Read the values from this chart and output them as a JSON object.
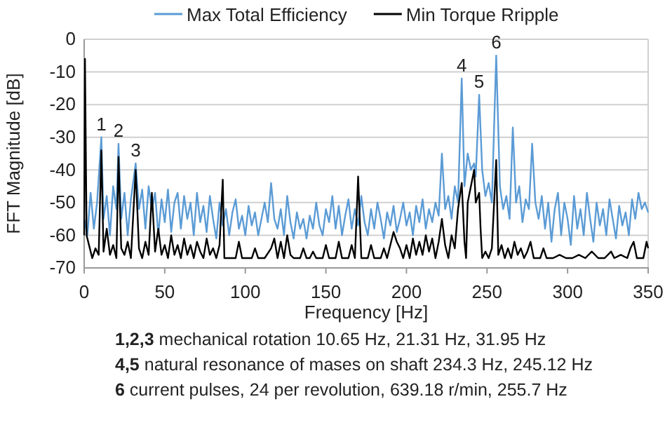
{
  "chart_data": {
    "type": "line",
    "xlabel": "Frequency [Hz]",
    "ylabel": "FFT Magnitude [dB]",
    "xlim": [
      0,
      350
    ],
    "xticks": [
      0,
      50,
      100,
      150,
      200,
      250,
      300,
      350
    ],
    "ylim": [
      -70,
      0
    ],
    "yticks": [
      -70,
      -60,
      -50,
      -40,
      -30,
      -20,
      -10,
      0
    ],
    "grid": "y",
    "legend": "top",
    "annotations": [
      {
        "text": "1",
        "x": 10.65,
        "y": -30
      },
      {
        "text": "2",
        "x": 21.31,
        "y": -32
      },
      {
        "text": "3",
        "x": 31.95,
        "y": -38
      },
      {
        "text": "4",
        "x": 234.3,
        "y": -12
      },
      {
        "text": "5",
        "x": 245.12,
        "y": -17
      },
      {
        "text": "6",
        "x": 255.7,
        "y": -5
      },
      "1,2,3 mechanical rotation 10.65 Hz, 21.31 Hz, 31.95 Hz",
      "4,5 natural resonance of  mases on shaft 234.3 Hz, 245.12 Hz",
      "6 current pulses, 24 per revolution, 639.18 r/min, 255.7 Hz"
    ],
    "series": [
      {
        "name": "Max Total Efficiency",
        "color": "#5b9bd5",
        "x": [
          0,
          2,
          4,
          6,
          8,
          10.65,
          12,
          14,
          16,
          18,
          20,
          21.31,
          23,
          25,
          27,
          29,
          31.95,
          34,
          36,
          38,
          40,
          42,
          44,
          46,
          48,
          50,
          52,
          54,
          56,
          58,
          60,
          62,
          64,
          66,
          68,
          70,
          72,
          74,
          76,
          78,
          80,
          82,
          84,
          86,
          88,
          90,
          92,
          94,
          96,
          98,
          100,
          102,
          104,
          106,
          108,
          110,
          112,
          114,
          116,
          118,
          120,
          122,
          124,
          126,
          128,
          130,
          132,
          134,
          136,
          138,
          140,
          142,
          144,
          146,
          148,
          150,
          152,
          154,
          156,
          158,
          160,
          162,
          164,
          166,
          168,
          170,
          172,
          174,
          176,
          178,
          180,
          182,
          184,
          186,
          188,
          190,
          192,
          194,
          196,
          198,
          200,
          202,
          204,
          206,
          208,
          210,
          212,
          214,
          216,
          218,
          220,
          222,
          224,
          226,
          228,
          230,
          232,
          234.3,
          236,
          238,
          240,
          242,
          243,
          245.12,
          247,
          249,
          251,
          253,
          255.7,
          258,
          260,
          262,
          264,
          266,
          268,
          270,
          272,
          274,
          276,
          278,
          280,
          282,
          284,
          286,
          288,
          290,
          292,
          294,
          296,
          298,
          300,
          302,
          304,
          306,
          308,
          310,
          312,
          314,
          316,
          318,
          320,
          322,
          324,
          326,
          328,
          330,
          332,
          334,
          336,
          338,
          340,
          342,
          344,
          346,
          348,
          350
        ],
        "values": [
          -55,
          -60,
          -47,
          -58,
          -50,
          -30,
          -55,
          -48,
          -60,
          -45,
          -52,
          -32,
          -55,
          -47,
          -60,
          -49,
          -38,
          -52,
          -46,
          -58,
          -45,
          -52,
          -47,
          -60,
          -49,
          -56,
          -46,
          -59,
          -50,
          -47,
          -58,
          -48,
          -55,
          -50,
          -60,
          -47,
          -56,
          -51,
          -59,
          -48,
          -55,
          -61,
          -50,
          -57,
          -52,
          -60,
          -53,
          -49,
          -58,
          -54,
          -60,
          -51,
          -57,
          -53,
          -60,
          -55,
          -50,
          -56,
          -44,
          -55,
          -58,
          -52,
          -60,
          -48,
          -56,
          -61,
          -53,
          -58,
          -55,
          -61,
          -54,
          -58,
          -50,
          -57,
          -60,
          -52,
          -56,
          -48,
          -58,
          -51,
          -60,
          -54,
          -49,
          -58,
          -52,
          -57,
          -48,
          -56,
          -60,
          -52,
          -58,
          -50,
          -55,
          -61,
          -53,
          -57,
          -51,
          -59,
          -55,
          -50,
          -57,
          -53,
          -60,
          -51,
          -56,
          -49,
          -58,
          -52,
          -56,
          -50,
          -54,
          -35,
          -52,
          -48,
          -55,
          -45,
          -50,
          -12,
          -45,
          -35,
          -40,
          -38,
          -42,
          -17,
          -40,
          -48,
          -44,
          -50,
          -5,
          -45,
          -52,
          -48,
          -55,
          -27,
          -50,
          -45,
          -56,
          -49,
          -52,
          -32,
          -50,
          -55,
          -48,
          -58,
          -50,
          -62,
          -52,
          -47,
          -60,
          -50,
          -55,
          -63,
          -48,
          -58,
          -52,
          -60,
          -47,
          -55,
          -62,
          -50,
          -57,
          -52,
          -60,
          -49,
          -55,
          -61,
          -51,
          -57,
          -53,
          -60,
          -49,
          -55,
          -47,
          -52,
          -50,
          -53
        ]
      },
      {
        "name": "Min Torque Rripple",
        "color": "#000000",
        "x": [
          0,
          0.5,
          1.5,
          3,
          5,
          7,
          9,
          10.65,
          12,
          14,
          16,
          18,
          20,
          21.31,
          23,
          25,
          27,
          29,
          31.95,
          34,
          36,
          38,
          40,
          42,
          44,
          46,
          48,
          50,
          52,
          54,
          56,
          58,
          60,
          62,
          64,
          66,
          68,
          70,
          72,
          74,
          76,
          78,
          80,
          82,
          84,
          86,
          87,
          90,
          94,
          96,
          98,
          100,
          104,
          106,
          108,
          112,
          116,
          118,
          120,
          122,
          124,
          126,
          128,
          130,
          134,
          136,
          138,
          140,
          142,
          144,
          148,
          150,
          152,
          156,
          158,
          160,
          164,
          166,
          168,
          170,
          172,
          176,
          178,
          180,
          184,
          186,
          188,
          192,
          194,
          196,
          198,
          200,
          202,
          204,
          206,
          208,
          210,
          212,
          214,
          216,
          218,
          220,
          222,
          224,
          226,
          228,
          230,
          232,
          234.3,
          236,
          237,
          238,
          240,
          242,
          243,
          245.12,
          246,
          247,
          249,
          251,
          253,
          255.7,
          257,
          259,
          261,
          263,
          265,
          267,
          269,
          271,
          273,
          275,
          277,
          279,
          283,
          285,
          287,
          291,
          295,
          299,
          303,
          307,
          311,
          315,
          319,
          323,
          327,
          329,
          333,
          337,
          339,
          341,
          343,
          347,
          349,
          350
        ],
        "values": [
          -60,
          -6,
          -60,
          -63,
          -67,
          -64,
          -66,
          -34,
          -65,
          -58,
          -66,
          -63,
          -67,
          -36,
          -64,
          -66,
          -62,
          -67,
          -40,
          -64,
          -67,
          -62,
          -66,
          -47,
          -65,
          -58,
          -66,
          -63,
          -67,
          -60,
          -66,
          -63,
          -67,
          -61,
          -66,
          -63,
          -67,
          -62,
          -65,
          -67,
          -61,
          -66,
          -64,
          -67,
          -63,
          -43,
          -67,
          -67,
          -67,
          -62,
          -67,
          -67,
          -67,
          -64,
          -67,
          -67,
          -64,
          -61,
          -67,
          -62,
          -67,
          -60,
          -66,
          -67,
          -67,
          -64,
          -67,
          -67,
          -65,
          -67,
          -67,
          -63,
          -67,
          -67,
          -62,
          -67,
          -67,
          -63,
          -67,
          -42,
          -67,
          -67,
          -63,
          -67,
          -67,
          -64,
          -67,
          -59,
          -62,
          -64,
          -67,
          -63,
          -67,
          -61,
          -66,
          -62,
          -66,
          -60,
          -65,
          -61,
          -67,
          -62,
          -55,
          -63,
          -67,
          -60,
          -64,
          -52,
          -44,
          -62,
          -67,
          -50,
          -45,
          -40,
          -50,
          -47,
          -58,
          -67,
          -65,
          -67,
          -64,
          -37,
          -66,
          -63,
          -67,
          -64,
          -67,
          -62,
          -66,
          -64,
          -67,
          -65,
          -62,
          -67,
          -67,
          -64,
          -67,
          -67,
          -66,
          -67,
          -67,
          -66,
          -67,
          -65,
          -67,
          -67,
          -65,
          -67,
          -66,
          -67,
          -64,
          -62,
          -67,
          -67,
          -62,
          -64
        ]
      }
    ]
  }
}
